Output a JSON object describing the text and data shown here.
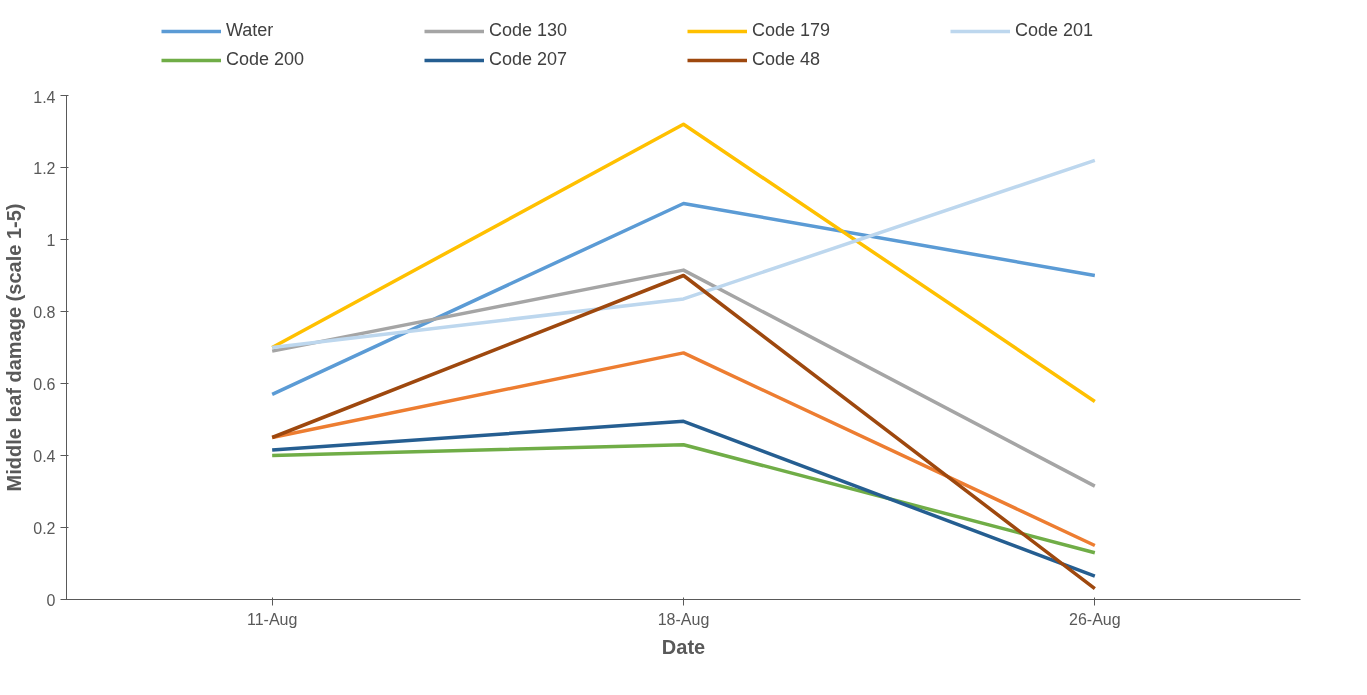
{
  "chart_data": {
    "type": "line",
    "xlabel": "Date",
    "ylabel": "Middle leaf damage (scale 1-5)",
    "categories": [
      "11-Aug",
      "18-Aug",
      "26-Aug"
    ],
    "ylim": [
      0,
      1.4
    ],
    "yticks": [
      0,
      0.2,
      0.4,
      0.6,
      0.8,
      1,
      1.2,
      1.4
    ],
    "grid": false,
    "legend": "top",
    "marker": "none",
    "series": [
      {
        "name": "Water",
        "color": "#5b9bd5",
        "values": [
          0.57,
          1.1,
          0.9
        ]
      },
      {
        "color": "#ed7d31",
        "values": [
          0.45,
          0.685,
          0.15
        ]
      },
      {
        "name": "Code 130",
        "color": "#a5a5a5",
        "values": [
          0.69,
          0.915,
          0.315
        ]
      },
      {
        "name": "Code 179",
        "color": "#ffc000",
        "values": [
          0.7,
          1.32,
          0.55
        ]
      },
      {
        "name": "Code 201",
        "color": "#bdd7ee",
        "values": [
          0.7,
          0.835,
          1.22
        ]
      },
      {
        "name": "Code 200",
        "color": "#70ad47",
        "values": [
          0.4,
          0.43,
          0.13
        ]
      },
      {
        "name": "Code 207",
        "color": "#255e91",
        "values": [
          0.415,
          0.495,
          0.065
        ]
      },
      {
        "name": "Code 48",
        "color": "#9e480e",
        "values": [
          0.45,
          0.9,
          0.03
        ]
      }
    ]
  }
}
